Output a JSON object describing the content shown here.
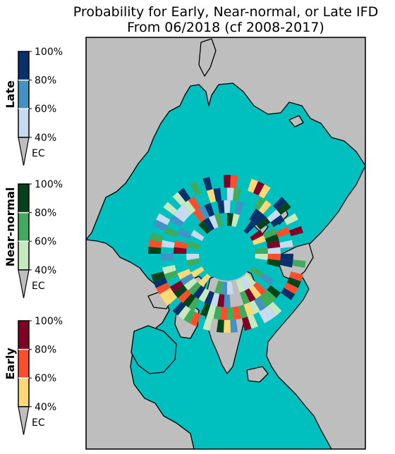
{
  "chart_data": {
    "type": "map",
    "title": "Probability for Early, Near-normal, or Late IFD",
    "subtitle": "From 06/2018 (cf 2008-2017)",
    "colorbars": [
      {
        "name": "Late",
        "ticks": [
          "100%",
          "80%",
          "60%",
          "40%"
        ],
        "below_label": "EC",
        "colors": [
          "#08306b",
          "#4292c6",
          "#c6dbef"
        ]
      },
      {
        "name": "Near-normal",
        "ticks": [
          "100%",
          "80%",
          "60%",
          "40%"
        ],
        "below_label": "EC",
        "colors": [
          "#00441b",
          "#41ab5d",
          "#c7e9c0"
        ]
      },
      {
        "name": "Early",
        "ticks": [
          "100%",
          "80%",
          "60%",
          "40%"
        ],
        "below_label": "EC",
        "colors": [
          "#800026",
          "#fc4e2a",
          "#fed976"
        ]
      }
    ],
    "map": {
      "ocean_color": "#00bfbf",
      "land_color": "#bebebe",
      "ec_color": "#bebebe"
    }
  }
}
